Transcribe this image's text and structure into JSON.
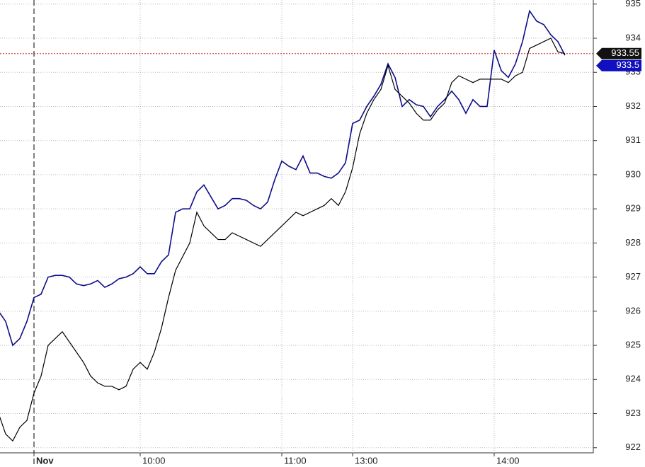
{
  "chart_data": {
    "type": "line",
    "categories": [
      null,
      null,
      null,
      null,
      null,
      "Nov",
      null,
      null,
      null,
      null,
      null,
      null,
      null,
      null,
      null,
      null,
      null,
      null,
      null,
      null,
      "10:00",
      null,
      null,
      null,
      null,
      null,
      null,
      null,
      null,
      null,
      null,
      null,
      null,
      null,
      null,
      null,
      null,
      null,
      null,
      null,
      "11:00",
      null,
      null,
      null,
      null,
      null,
      null,
      null,
      null,
      null,
      "13:00",
      null,
      null,
      null,
      null,
      null,
      null,
      null,
      null,
      null,
      null,
      null,
      null,
      null,
      null,
      null,
      null,
      null,
      null,
      null,
      "14:00",
      null,
      null,
      null,
      null,
      null,
      null,
      null,
      null,
      null,
      null
    ],
    "series": [
      {
        "color": "#0d0d8a",
        "last_label": "933.5",
        "values": [
          926.0,
          925.7,
          925.0,
          925.2,
          925.7,
          926.4,
          926.5,
          927.0,
          927.05,
          927.05,
          927.0,
          926.8,
          926.75,
          926.8,
          926.9,
          926.7,
          926.8,
          926.95,
          927.0,
          927.1,
          927.3,
          927.1,
          927.1,
          927.45,
          927.65,
          928.9,
          929.0,
          929.0,
          929.5,
          929.7,
          929.35,
          929.0,
          929.1,
          929.3,
          929.3,
          929.25,
          929.1,
          929.0,
          929.2,
          929.85,
          930.4,
          930.25,
          930.15,
          930.55,
          930.05,
          930.05,
          929.95,
          929.9,
          930.05,
          930.35,
          931.5,
          931.6,
          932.0,
          932.3,
          932.65,
          933.25,
          932.85,
          932.0,
          932.2,
          932.05,
          932.0,
          931.7,
          932.0,
          932.2,
          932.45,
          932.2,
          931.8,
          932.2,
          932.0,
          932.0,
          933.65,
          933.05,
          932.85,
          933.25,
          933.9,
          934.8,
          934.5,
          934.4,
          934.1,
          933.9,
          933.5
        ]
      },
      {
        "color": "#000000",
        "last_label": "933.55",
        "values": [
          923.0,
          922.4,
          922.2,
          922.6,
          922.8,
          923.6,
          924.1,
          925.0,
          925.2,
          925.4,
          925.1,
          924.8,
          924.5,
          924.1,
          923.9,
          923.8,
          923.8,
          923.7,
          923.8,
          924.3,
          924.5,
          924.3,
          924.8,
          925.5,
          926.4,
          927.2,
          927.6,
          928.0,
          928.9,
          928.5,
          928.3,
          928.1,
          928.1,
          928.3,
          928.2,
          928.1,
          928.0,
          927.9,
          928.1,
          928.3,
          928.5,
          928.7,
          928.9,
          928.8,
          928.9,
          929.0,
          929.1,
          929.3,
          929.1,
          929.5,
          930.2,
          931.2,
          931.8,
          932.2,
          932.5,
          933.2,
          932.5,
          932.3,
          932.1,
          931.8,
          931.6,
          931.6,
          931.9,
          932.1,
          932.7,
          932.9,
          932.8,
          932.7,
          932.8,
          932.8,
          932.8,
          932.8,
          932.7,
          932.9,
          933.0,
          933.7,
          933.8,
          933.9,
          934.0,
          933.6,
          933.55
        ]
      }
    ],
    "reference_line": 933.55,
    "reference_color": "#d02020",
    "ylim": [
      921.85,
      935.12
    ],
    "yticks": [
      922,
      923,
      924,
      925,
      926,
      927,
      928,
      929,
      930,
      931,
      932,
      933,
      934,
      935
    ],
    "grid": true
  }
}
